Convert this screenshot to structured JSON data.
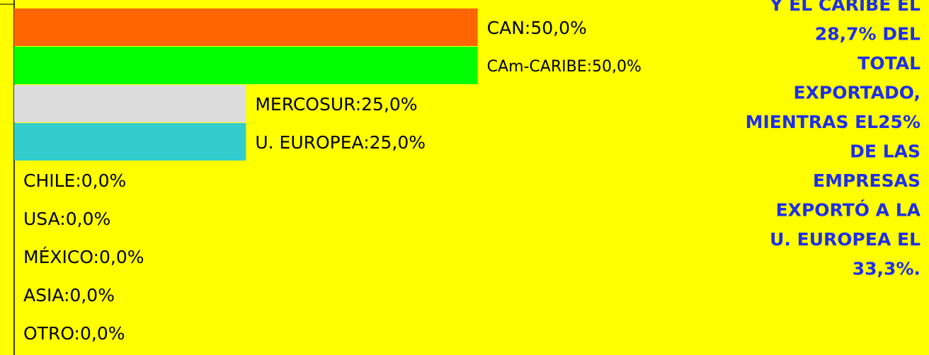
{
  "chart_data": {
    "type": "barh",
    "value_labels": [
      "CAN:50,0%",
      "CAm-CARIBE:50,0%",
      "MERCOSUR:25,0%",
      "U. EUROPEA:25,0%",
      "CHILE:0,0%",
      "USA:0,0%",
      "MÉXICO:0,0%",
      "ASIA:0,0%",
      "OTRO:0,0%"
    ],
    "values": [
      50,
      50,
      25,
      25,
      0,
      0,
      0,
      0,
      0
    ],
    "colors": [
      "#ff6600",
      "#00ff00",
      "#dcdcdc",
      "#33cccc",
      "#999999",
      "#999999",
      "#999999",
      "#999999",
      "#999999"
    ],
    "xlim": [
      0,
      75
    ],
    "annotation": [
      "Y EL CARIBE EL",
      "28,7% DEL",
      "TOTAL",
      "EXPORTADO,",
      "MIENTRAS EL25%",
      "DE LAS",
      "EMPRESAS",
      "EXPORTÓ A LA",
      "U. EUROPEA EL",
      "33,3%."
    ]
  }
}
